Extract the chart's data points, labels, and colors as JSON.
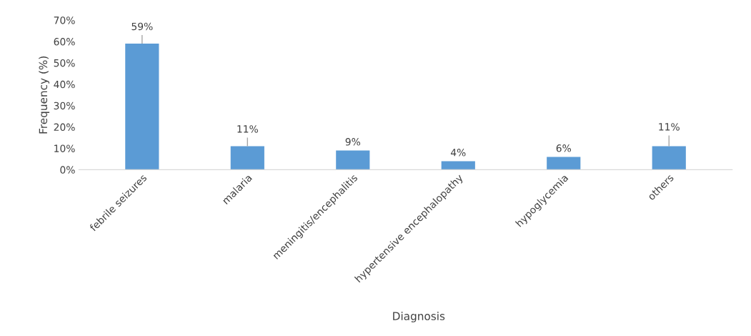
{
  "chart_data": {
    "type": "bar",
    "xlabel": "Diagnosis",
    "ylabel": "Frequency (%)",
    "categories": [
      "febrile seizures",
      "malaria",
      "meningitis/encephalitis",
      "hypertensive encephalopathy",
      "hypoglycemia",
      "others"
    ],
    "values": [
      59,
      11,
      9,
      4,
      6,
      11
    ],
    "errors": [
      [
        59,
        63
      ],
      [
        11,
        15
      ],
      null,
      null,
      null,
      [
        11,
        16
      ]
    ],
    "value_labels": [
      "59%",
      "11%",
      "9%",
      "4%",
      "6%",
      "11%"
    ],
    "color": "#5b9bd5",
    "ylim": [
      0,
      70
    ],
    "yticks": [
      {
        "value": 0,
        "label": "0%"
      },
      {
        "value": 10,
        "label": "10%"
      },
      {
        "value": 20,
        "label": "20%"
      },
      {
        "value": 30,
        "label": "30%"
      },
      {
        "value": 40,
        "label": "40%"
      },
      {
        "value": 50,
        "label": "50%"
      },
      {
        "value": 60,
        "label": "60%"
      },
      {
        "value": 70,
        "label": "70%"
      }
    ],
    "grid": false,
    "legend": false
  }
}
